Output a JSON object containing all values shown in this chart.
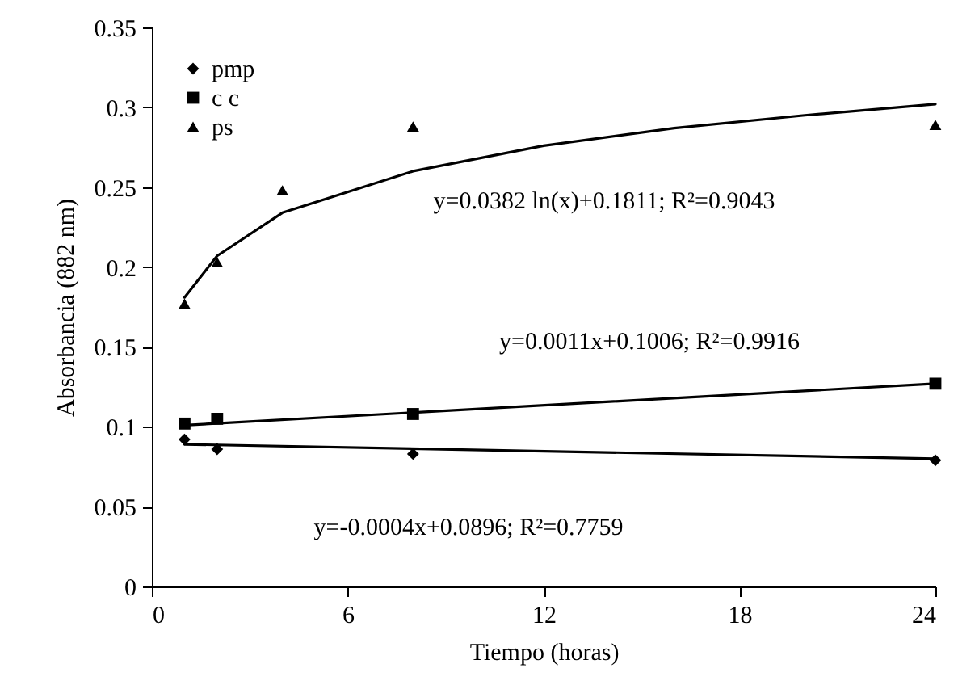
{
  "chart_data": {
    "type": "scatter",
    "xlabel": "Tiempo (horas)",
    "ylabel": "Absorbancia (882 nm)",
    "xlim": [
      0,
      24
    ],
    "xticks": [
      0,
      6,
      12,
      18,
      24
    ],
    "ylim": [
      0,
      0.35
    ],
    "yticks": [
      0,
      0.05,
      0.1,
      0.15,
      0.2,
      0.25,
      0.3,
      0.35
    ],
    "grid": false,
    "legend": "top left",
    "series": [
      {
        "name": "pmp",
        "marker": "diamond",
        "color": "#000000",
        "x": [
          1,
          2,
          8,
          24
        ],
        "values": [
          0.092,
          0.086,
          0.083,
          0.079
        ]
      },
      {
        "name": "c c",
        "marker": "square",
        "color": "#000000",
        "x": [
          1,
          2,
          8,
          24
        ],
        "values": [
          0.102,
          0.105,
          0.108,
          0.127
        ]
      },
      {
        "name": "ps",
        "marker": "triangle",
        "color": "#000000",
        "x": [
          1,
          2,
          4,
          8,
          24
        ],
        "values": [
          0.177,
          0.203,
          0.248,
          0.288,
          0.289
        ]
      },
      {
        "type": "line",
        "color": "#000000",
        "x": [
          1,
          2,
          4,
          8,
          12,
          16,
          20,
          24
        ],
        "values": [
          0.181,
          0.207,
          0.234,
          0.26,
          0.276,
          0.287,
          0.295,
          0.302
        ]
      },
      {
        "type": "line",
        "color": "#000000",
        "x": [
          1,
          24
        ],
        "values": [
          0.101,
          0.127
        ]
      },
      {
        "type": "line",
        "color": "#000000",
        "x": [
          1,
          24
        ],
        "values": [
          0.089,
          0.08
        ]
      }
    ],
    "annotations": [
      "y=0.0382 ln(x)+0.1811; R²=0.9043",
      "y=0.0011x+0.1006; R²=0.9916",
      "y=-0.0004x+0.0896; R²=0.7759"
    ]
  }
}
